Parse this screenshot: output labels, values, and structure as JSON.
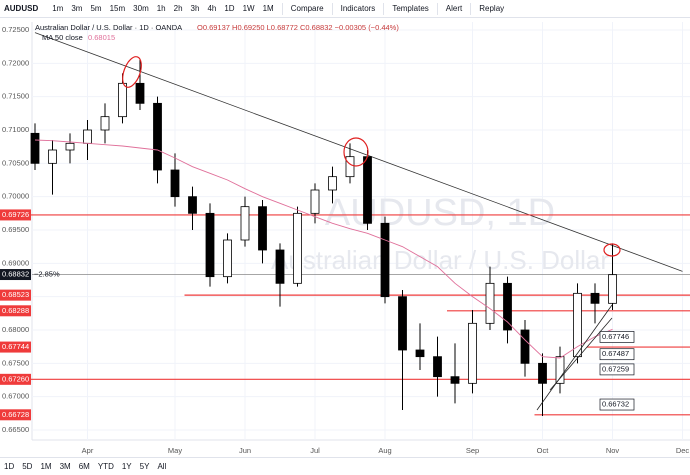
{
  "toolbar": {
    "symbol": "AUDUSD",
    "intervals": [
      "1m",
      "3m",
      "5m",
      "15m",
      "30m",
      "1h",
      "2h",
      "3h",
      "4h",
      "1D",
      "1W",
      "1M"
    ],
    "buttons": [
      "Compare",
      "Indicators",
      "Templates",
      "Alert",
      "Replay"
    ]
  },
  "range_bar": [
    "1D",
    "5D",
    "1M",
    "3M",
    "6M",
    "YTD",
    "1Y",
    "5Y",
    "All"
  ],
  "chart_data": {
    "type": "candlestick",
    "title": "Australian Dollar / U.S. Dollar · 1D · OANDA",
    "ohlc_text": "O0.69137 H0.69250 L0.68772 C0.68832 −0.00305 (−0.44%)",
    "watermark": [
      "AUDUSD, 1D",
      "Australian Dollar / U.S. Dollar"
    ],
    "categories": [
      null,
      null,
      null,
      "Apr",
      null,
      null,
      null,
      null,
      "May",
      null,
      null,
      null,
      "Jun",
      null,
      null,
      null,
      "Jul",
      null,
      null,
      null,
      "Aug",
      null,
      null,
      null,
      null,
      "Sep",
      null,
      null,
      null,
      "Oct",
      null,
      null,
      null,
      "Nov",
      null,
      null,
      null,
      "Dec"
    ],
    "open": [
      0.7095,
      0.705,
      0.707,
      0.708,
      0.71,
      0.712,
      0.717,
      0.714,
      0.704,
      0.7,
      0.6975,
      0.688,
      0.6935,
      0.6985,
      0.692,
      0.687,
      0.6975,
      0.701,
      0.703,
      0.706,
      0.696,
      0.685,
      0.677,
      0.676,
      0.673,
      0.672,
      0.681,
      0.687,
      0.68,
      0.675,
      0.672,
      0.676,
      0.6855,
      0.684,
      null,
      null,
      null,
      null
    ],
    "high": [
      0.711,
      0.7085,
      0.7095,
      0.7115,
      0.714,
      0.7185,
      0.7206,
      0.715,
      0.7065,
      0.7015,
      0.699,
      0.6945,
      0.7,
      0.6995,
      0.693,
      0.6985,
      0.702,
      0.7045,
      0.708,
      0.707,
      0.697,
      0.686,
      0.681,
      0.679,
      0.678,
      0.683,
      0.6895,
      0.688,
      0.6815,
      0.6765,
      0.6775,
      0.687,
      0.687,
      0.693,
      null,
      null,
      null,
      null
    ],
    "low": [
      0.704,
      0.7003,
      0.705,
      0.7055,
      0.708,
      0.711,
      0.713,
      0.702,
      0.6985,
      0.695,
      0.6865,
      0.687,
      0.6925,
      0.69,
      0.6835,
      0.6865,
      0.696,
      0.699,
      0.702,
      0.695,
      0.684,
      0.668,
      0.674,
      0.67,
      0.669,
      0.6705,
      0.68,
      0.678,
      0.673,
      0.6671,
      0.6705,
      0.675,
      0.681,
      0.683,
      null,
      null,
      null,
      null
    ],
    "close": [
      0.705,
      0.707,
      0.708,
      0.71,
      0.712,
      0.717,
      0.714,
      0.704,
      0.7,
      0.6975,
      0.688,
      0.6935,
      0.6985,
      0.692,
      0.687,
      0.6975,
      0.701,
      0.703,
      0.706,
      0.696,
      0.685,
      0.677,
      0.676,
      0.673,
      0.672,
      0.681,
      0.687,
      0.68,
      0.675,
      0.672,
      0.676,
      0.6855,
      0.684,
      0.6883,
      null,
      null,
      null,
      null
    ],
    "up_color": "#ffffff",
    "down_color": "#000000",
    "edge_color": "#000000",
    "series": [
      {
        "name": "MA 50 close",
        "color": "#e0709a",
        "value_label": "0.68015",
        "values": [
          0.7085,
          0.7084,
          0.7082,
          0.708,
          0.7078,
          0.7076,
          0.7073,
          0.707,
          0.7058,
          0.7045,
          0.7035,
          0.7025,
          0.7012,
          0.7,
          0.699,
          0.698,
          0.697,
          0.696,
          0.6952,
          0.6945,
          0.6935,
          0.6925,
          0.691,
          0.6895,
          0.687,
          0.685,
          0.6832,
          0.6812,
          0.6785,
          0.676,
          0.6758,
          0.6775,
          0.679,
          0.6801,
          null,
          null,
          null,
          null
        ]
      }
    ],
    "levels": [
      {
        "value": 0.69726,
        "label": "0.69726",
        "start": 0
      },
      {
        "value": 0.68523,
        "label": "0.68523",
        "start": 9
      },
      {
        "value": 0.68288,
        "label": "0.68288",
        "start": 24
      },
      {
        "value": 0.67744,
        "label": "0.67744",
        "start": 32
      },
      {
        "value": 0.6726,
        "label": "0.67260",
        "start": 0
      },
      {
        "value": 0.66728,
        "label": "0.66728",
        "start": 29
      }
    ],
    "level_color": "#ef3b3b",
    "annotations": [
      {
        "value": 0.67746,
        "label": "0.67746"
      },
      {
        "value": 0.67487,
        "label": "0.67487"
      },
      {
        "value": 0.67259,
        "label": "0.67259"
      },
      {
        "value": 0.66732,
        "label": "0.66732"
      }
    ],
    "last_price": {
      "value": 0.68832,
      "label": "0.68832",
      "change": "−2.85%"
    },
    "trendline": {
      "start": 0,
      "end": 37,
      "values": [
        0.7246,
        0.6888
      ]
    },
    "ylim": [
      0.6635,
      0.7262
    ],
    "yticks": [
      {
        "value": 0.725,
        "label": "0.72500"
      },
      {
        "value": 0.72,
        "label": "0.72000"
      },
      {
        "value": 0.715,
        "label": "0.71500"
      },
      {
        "value": 0.71,
        "label": "0.71000"
      },
      {
        "value": 0.705,
        "label": "0.70500"
      },
      {
        "value": 0.7,
        "label": "0.70000"
      },
      {
        "value": 0.695,
        "label": "0.69500"
      },
      {
        "value": 0.69,
        "label": "0.69000"
      },
      {
        "value": 0.685,
        "label": "0.68500"
      },
      {
        "value": 0.68,
        "label": "0.68000"
      },
      {
        "value": 0.675,
        "label": "0.67500"
      },
      {
        "value": 0.67,
        "label": "0.67000"
      },
      {
        "value": 0.665,
        "label": "0.66500"
      }
    ],
    "grid": true
  }
}
